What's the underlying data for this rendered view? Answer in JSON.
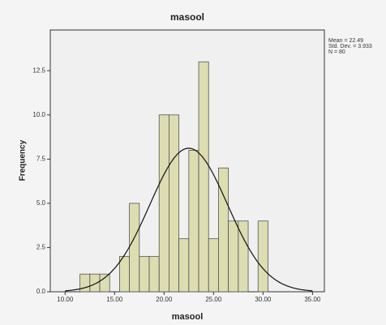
{
  "chart_data": {
    "type": "histogram",
    "title": "masool",
    "x_label": "masool",
    "y_label": "Frequency",
    "bins": [
      11.5,
      12.5,
      13.5,
      14.5,
      15.5,
      16.5,
      17.5,
      18.5,
      19.5,
      20.5,
      21.5,
      22.5,
      23.5,
      24.5,
      25.5,
      26.5,
      27.5,
      28.5,
      29.5,
      30.5
    ],
    "values": [
      1,
      1,
      1,
      0,
      2,
      5,
      2,
      2,
      10,
      10,
      3,
      8,
      13,
      3,
      7,
      4,
      4,
      0,
      4
    ],
    "color": "#d8d8a2",
    "xlim": [
      8.5,
      36.2
    ],
    "ylim": [
      0,
      14.8
    ],
    "xticks": [
      {
        "value": 10,
        "label": "10.00"
      },
      {
        "value": 15,
        "label": "15.00"
      },
      {
        "value": 20,
        "label": "20.00"
      },
      {
        "value": 25,
        "label": "25.00"
      },
      {
        "value": 30,
        "label": "30.00"
      },
      {
        "value": 35,
        "label": "35.00"
      }
    ],
    "yticks": [
      {
        "value": 0,
        "label": "0.0"
      },
      2.5,
      {
        "value": 5,
        "label": "5.0"
      },
      7.5,
      {
        "value": 10,
        "label": "10.0"
      },
      12.5
    ],
    "normal_curve": {
      "mean": 22.49,
      "sd": 3.933,
      "n": 80
    },
    "stats_text": [
      "Mean = 22.49",
      "Std. Dev. = 3.933",
      "N = 80"
    ]
  }
}
